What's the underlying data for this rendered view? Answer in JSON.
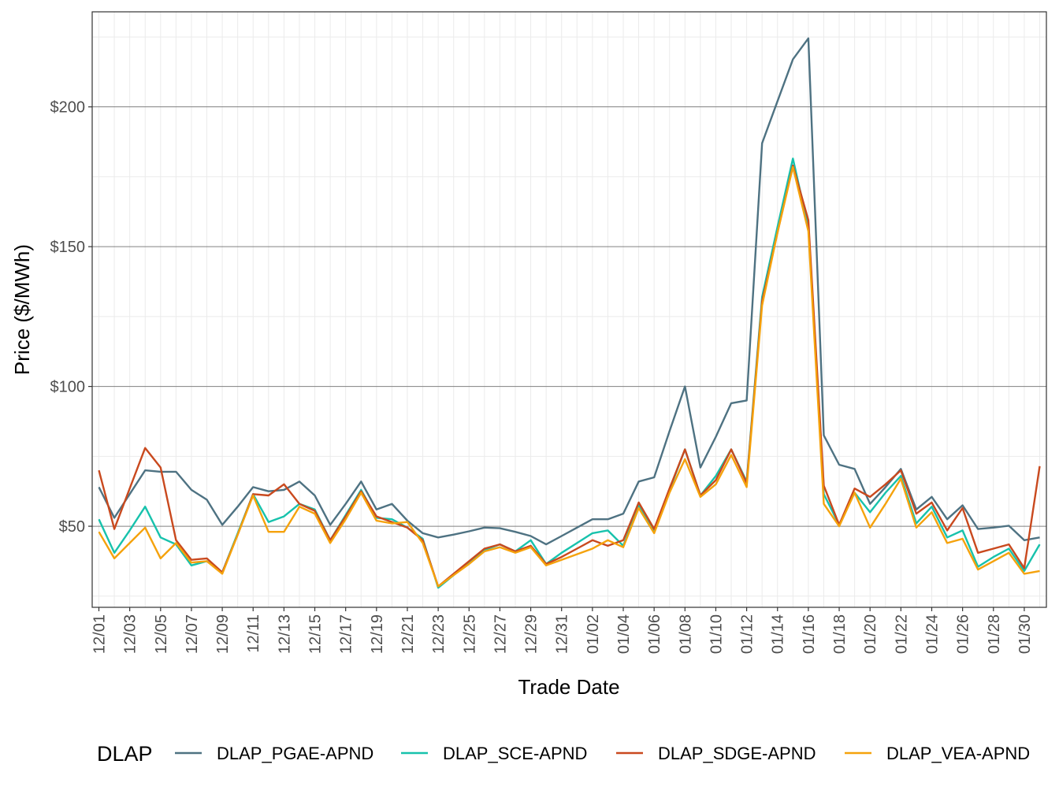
{
  "chart_data": {
    "type": "line",
    "title": "",
    "xlabel": "Trade Date",
    "ylabel": "Price ($/MWh)",
    "ylim": [
      21,
      234
    ],
    "y_ticks": [
      50,
      100,
      150,
      200
    ],
    "y_tick_labels": [
      "$50",
      "$100",
      "$150",
      "$200"
    ],
    "grid": true,
    "legend_title": "DLAP",
    "legend_position": "bottom",
    "categories": [
      "12/01",
      "12/02",
      "12/03",
      "12/04",
      "12/05",
      "12/06",
      "12/07",
      "12/08",
      "12/09",
      "12/10",
      "12/11",
      "12/12",
      "12/13",
      "12/14",
      "12/15",
      "12/16",
      "12/17",
      "12/18",
      "12/19",
      "12/20",
      "12/21",
      "12/22",
      "12/23",
      "12/24",
      "12/25",
      "12/26",
      "12/27",
      "12/28",
      "12/29",
      "12/30",
      "12/31",
      "01/01",
      "01/02",
      "01/03",
      "01/04",
      "01/05",
      "01/06",
      "01/07",
      "01/08",
      "01/09",
      "01/10",
      "01/11",
      "01/12",
      "01/13",
      "01/14",
      "01/15",
      "01/16",
      "01/17",
      "01/18",
      "01/19",
      "01/20",
      "01/21",
      "01/22",
      "01/23",
      "01/24",
      "01/25",
      "01/26",
      "01/27",
      "01/28",
      "01/29",
      "01/30",
      "01/31"
    ],
    "x_tick_labels": [
      "12/01",
      "12/03",
      "12/05",
      "12/07",
      "12/09",
      "12/11",
      "12/13",
      "12/15",
      "12/17",
      "12/19",
      "12/21",
      "12/23",
      "12/25",
      "12/27",
      "12/29",
      "12/31",
      "01/02",
      "01/04",
      "01/06",
      "01/08",
      "01/10",
      "01/12",
      "01/14",
      "01/16",
      "01/18",
      "01/20",
      "01/22",
      "01/24",
      "01/26",
      "01/28",
      "01/30"
    ],
    "series": [
      {
        "name": "DLAP_PGAE-APND",
        "color": "#4E7282",
        "values": [
          64,
          53,
          61.5,
          70,
          69.5,
          69.5,
          63,
          59.5,
          50.5,
          57,
          64,
          62.5,
          63,
          66,
          61,
          50.5,
          58,
          66,
          56,
          58,
          52,
          47.5,
          46,
          47,
          48.2,
          49.5,
          49.3,
          48,
          46.5,
          43.5,
          46.5,
          49.5,
          52.5,
          52.5,
          54.5,
          66,
          67.5,
          84,
          100,
          71,
          82,
          94,
          95,
          187,
          202,
          217,
          224.5,
          82.5,
          72,
          70.5,
          58,
          64,
          70.5,
          56,
          60.5,
          52.5,
          57.5,
          49,
          49.5,
          50.2,
          45,
          46
        ]
      },
      {
        "name": "DLAP_SCE-APND",
        "color": "#17C2AC",
        "values": [
          52.5,
          40.5,
          48.5,
          57,
          46,
          43.5,
          36,
          37.5,
          33.5,
          47.5,
          61.5,
          51.5,
          53.5,
          58,
          56,
          45,
          54,
          63,
          53,
          52.5,
          49.5,
          45.5,
          28,
          32.5,
          37,
          41.5,
          43.5,
          41,
          45,
          36.5,
          40.5,
          44,
          47.5,
          48.5,
          43,
          57.5,
          48.5,
          63,
          77.5,
          61,
          68,
          77.5,
          66,
          132,
          157,
          181.5,
          157,
          61.5,
          50.5,
          62,
          55,
          62,
          68,
          51,
          57,
          46,
          48.5,
          35.5,
          39,
          42,
          34,
          43.5
        ]
      },
      {
        "name": "DLAP_SDGE-APND",
        "color": "#C9491E",
        "values": [
          70,
          49,
          63.5,
          78,
          71,
          45,
          38,
          38.5,
          33.5,
          47,
          61.5,
          61,
          65,
          58,
          55.5,
          45,
          53.5,
          62.5,
          53.5,
          51.5,
          49.5,
          45,
          28.5,
          33,
          37.5,
          42,
          43.5,
          41,
          43,
          36.5,
          39,
          42,
          45,
          43,
          45,
          58.5,
          49,
          63.5,
          77.5,
          61,
          66.5,
          77.5,
          65.5,
          130.5,
          155,
          179,
          159.5,
          64.5,
          50.5,
          63.5,
          60.5,
          65,
          70,
          54.5,
          58.5,
          48.5,
          56.5,
          40.5,
          42,
          43.5,
          35,
          71.5
        ]
      },
      {
        "name": "DLAP_VEA-APND",
        "color": "#F5A20C",
        "values": [
          48,
          38.5,
          44,
          49.5,
          38.5,
          44,
          37,
          37.5,
          33,
          47,
          61,
          48,
          48,
          57,
          54.5,
          44,
          52.5,
          62,
          52,
          51,
          51.5,
          44,
          28.5,
          32.5,
          36.5,
          41,
          42.5,
          40.5,
          42.5,
          36,
          38,
          40,
          42,
          45,
          42.5,
          56.5,
          47.5,
          62,
          74,
          60.5,
          65,
          75.5,
          64,
          129,
          155,
          178.5,
          155.5,
          58,
          50,
          62,
          49.5,
          58,
          67,
          49.5,
          55,
          44,
          45.5,
          34.5,
          37.5,
          40.5,
          33,
          34
        ]
      }
    ]
  }
}
